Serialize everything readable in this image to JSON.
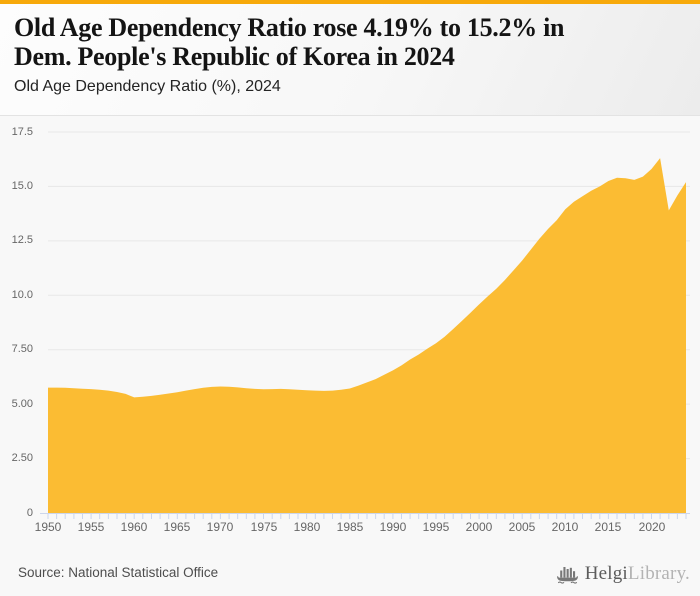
{
  "header": {
    "title_line1": "Old Age Dependency Ratio rose 4.19% to 15.2% in",
    "title_line2": "Dem. People's Republic of Korea in 2024",
    "subtitle": "Old Age Dependency Ratio (%), 2024"
  },
  "footer": {
    "source": "Source: National Statistical Office",
    "logo": {
      "icon": "viking-ship-bar-chart-icon",
      "brand_primary": "Helgi",
      "brand_secondary": "Library."
    }
  },
  "colors": {
    "accent_bar": "#F7A90A",
    "area_fill": "#FBBC33",
    "background": "#F8F8F8",
    "gridline": "#E7E7E7",
    "axis_tick": "#CCD6EB",
    "axis_label": "#666666"
  },
  "chart_data": {
    "type": "area",
    "title": "Old Age Dependency Ratio (%), 2024",
    "xlabel": "",
    "ylabel": "",
    "ylim": [
      0,
      17.5
    ],
    "grid": true,
    "legend": false,
    "ytick_values": [
      17.5,
      15.0,
      12.5,
      10.0,
      7.5,
      5.0,
      2.5,
      0
    ],
    "ytick_labels": [
      "17.5",
      "15.0",
      "12.5",
      "10.0",
      "7.50",
      "5.00",
      "2.50",
      "0"
    ],
    "xtick_label_values": [
      1950,
      1955,
      1960,
      1965,
      1970,
      1975,
      1980,
      1985,
      1990,
      1995,
      2000,
      2005,
      2010,
      2015,
      2020
    ],
    "xtick_labels": [
      "1950",
      "1955",
      "1960",
      "1965",
      "1970",
      "1975",
      "1980",
      "1985",
      "1990",
      "1995",
      "2000",
      "2005",
      "2010",
      "2015",
      "2020"
    ],
    "years": [
      1950,
      1951,
      1952,
      1953,
      1954,
      1955,
      1956,
      1957,
      1958,
      1959,
      1960,
      1961,
      1962,
      1963,
      1964,
      1965,
      1966,
      1967,
      1968,
      1969,
      1970,
      1971,
      1972,
      1973,
      1974,
      1975,
      1976,
      1977,
      1978,
      1979,
      1980,
      1981,
      1982,
      1983,
      1984,
      1985,
      1986,
      1987,
      1988,
      1989,
      1990,
      1991,
      1992,
      1993,
      1994,
      1995,
      1996,
      1997,
      1998,
      1999,
      2000,
      2001,
      2002,
      2003,
      2004,
      2005,
      2006,
      2007,
      2008,
      2009,
      2010,
      2011,
      2012,
      2013,
      2014,
      2015,
      2016,
      2017,
      2018,
      2019,
      2020,
      2021,
      2022,
      2023,
      2024
    ],
    "values": [
      5.76,
      5.76,
      5.75,
      5.73,
      5.71,
      5.69,
      5.66,
      5.62,
      5.56,
      5.47,
      5.31,
      5.34,
      5.38,
      5.43,
      5.49,
      5.55,
      5.62,
      5.69,
      5.75,
      5.79,
      5.81,
      5.8,
      5.77,
      5.73,
      5.7,
      5.68,
      5.69,
      5.7,
      5.68,
      5.66,
      5.64,
      5.62,
      5.61,
      5.62,
      5.66,
      5.72,
      5.85,
      6.0,
      6.15,
      6.35,
      6.55,
      6.78,
      7.05,
      7.28,
      7.55,
      7.8,
      8.1,
      8.45,
      8.82,
      9.2,
      9.58,
      9.95,
      10.3,
      10.7,
      11.15,
      11.6,
      12.1,
      12.6,
      13.05,
      13.45,
      13.95,
      14.3,
      14.55,
      14.8,
      15.0,
      15.25,
      15.4,
      15.38,
      15.3,
      15.45,
      15.8,
      16.3,
      13.9,
      14.59,
      15.2
    ]
  }
}
